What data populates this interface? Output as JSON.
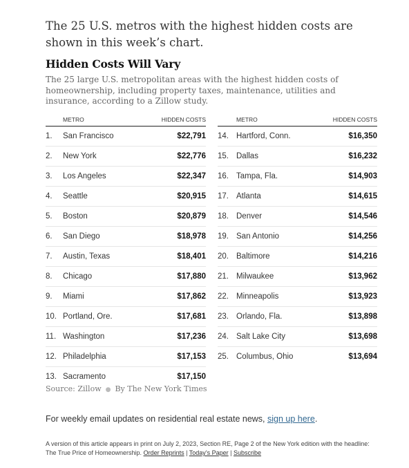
{
  "lead_text": "The 25 U.S. metros with the highest hidden costs are shown in this week’s chart.",
  "chart": {
    "title": "Hidden Costs Will Vary",
    "subtitle": "The 25 large U.S. metropolitan areas with the highest hidden costs of homeownership, including property taxes, maintenance, utilities and insurance, according to a Zillow study.",
    "col_metro": "METRO",
    "col_costs": "HIDDEN COSTS",
    "left_rows": [
      {
        "rank": "1.",
        "metro": "San Francisco",
        "value": "$22,791"
      },
      {
        "rank": "2.",
        "metro": "New York",
        "value": "$22,776"
      },
      {
        "rank": "3.",
        "metro": "Los Angeles",
        "value": "$22,347"
      },
      {
        "rank": "4.",
        "metro": "Seattle",
        "value": "$20,915"
      },
      {
        "rank": "5.",
        "metro": "Boston",
        "value": "$20,879"
      },
      {
        "rank": "6.",
        "metro": "San Diego",
        "value": "$18,978"
      },
      {
        "rank": "7.",
        "metro": "Austin, Texas",
        "value": "$18,401"
      },
      {
        "rank": "8.",
        "metro": "Chicago",
        "value": "$17,880"
      },
      {
        "rank": "9.",
        "metro": "Miami",
        "value": "$17,862"
      },
      {
        "rank": "10.",
        "metro": "Portland, Ore.",
        "value": "$17,681"
      },
      {
        "rank": "11.",
        "metro": "Washington",
        "value": "$17,236"
      },
      {
        "rank": "12.",
        "metro": "Philadelphia",
        "value": "$17,153"
      },
      {
        "rank": "13.",
        "metro": "Sacramento",
        "value": "$17,150"
      }
    ],
    "right_rows": [
      {
        "rank": "14.",
        "metro": "Hartford, Conn.",
        "value": "$16,350"
      },
      {
        "rank": "15.",
        "metro": "Dallas",
        "value": "$16,232"
      },
      {
        "rank": "16.",
        "metro": "Tampa, Fla.",
        "value": "$14,903"
      },
      {
        "rank": "17.",
        "metro": "Atlanta",
        "value": "$14,615"
      },
      {
        "rank": "18.",
        "metro": "Denver",
        "value": "$14,546"
      },
      {
        "rank": "19.",
        "metro": "San Antonio",
        "value": "$14,256"
      },
      {
        "rank": "20.",
        "metro": "Baltimore",
        "value": "$14,216"
      },
      {
        "rank": "21.",
        "metro": "Milwaukee",
        "value": "$13,962"
      },
      {
        "rank": "22.",
        "metro": "Minneapolis",
        "value": "$13,923"
      },
      {
        "rank": "23.",
        "metro": "Orlando, Fla.",
        "value": "$13,898"
      },
      {
        "rank": "24.",
        "metro": "Salt Lake City",
        "value": "$13,698"
      },
      {
        "rank": "25.",
        "metro": "Columbus, Ohio",
        "value": "$13,694"
      }
    ],
    "source": "Source: Zillow",
    "credit": "By The New York Times"
  },
  "email_prompt": {
    "text": "For weekly email updates on residential real estate news, ",
    "link": "sign up here",
    "end": "."
  },
  "footnote": {
    "text": "A version of this article appears in print on July 2, 2023, Section RE, Page 2 of the New York edition with the headline: The True Price of Homeownership. ",
    "order_reprints": "Order Reprints",
    "todays_paper": "Today’s Paper",
    "subscribe": "Subscribe",
    "sep": " | "
  },
  "colors": {
    "link": "#326891",
    "text": "#121212",
    "muted": "#666666"
  }
}
